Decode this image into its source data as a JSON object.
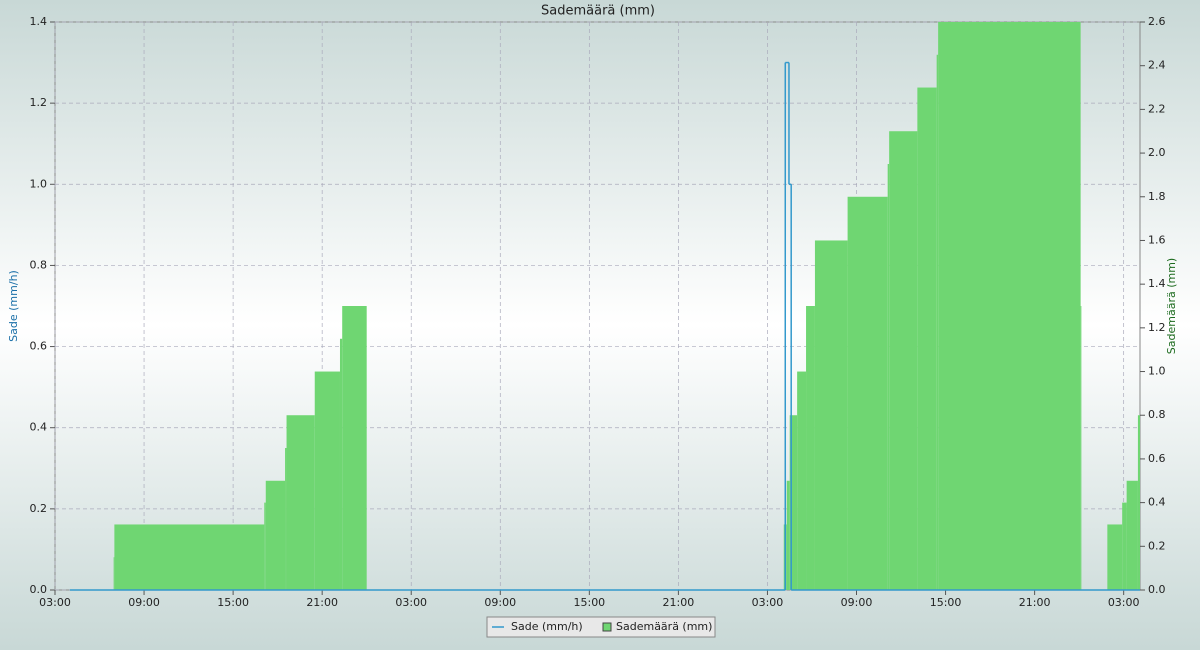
{
  "chart_data": {
    "type": "step",
    "title": "Sademäärä (mm)",
    "ylabel": "Sade (mm/h)",
    "y2label": "Sademäärä (mm)",
    "xlim": [
      0,
      73.1
    ],
    "xticks": [
      {
        "value": 0,
        "label": "03:00"
      },
      {
        "value": 6,
        "label": "09:00"
      },
      {
        "value": 12,
        "label": "15:00"
      },
      {
        "value": 18,
        "label": "21:00"
      },
      {
        "value": 24,
        "label": "03:00"
      },
      {
        "value": 30,
        "label": "09:00"
      },
      {
        "value": 36,
        "label": "15:00"
      },
      {
        "value": 42,
        "label": "21:00"
      },
      {
        "value": 48,
        "label": "03:00"
      },
      {
        "value": 54,
        "label": "09:00"
      },
      {
        "value": 60,
        "label": "15:00"
      },
      {
        "value": 66,
        "label": "21:00"
      },
      {
        "value": 72,
        "label": "03:00"
      }
    ],
    "ylim": [
      0,
      1.4
    ],
    "yticks": [
      {
        "value": 0,
        "label": "0.0"
      },
      {
        "value": 0.2,
        "label": "0.2"
      },
      {
        "value": 0.4,
        "label": "0.4"
      },
      {
        "value": 0.6,
        "label": "0.6"
      },
      {
        "value": 0.8,
        "label": "0.8"
      },
      {
        "value": 1,
        "label": "1.0"
      },
      {
        "value": 1.2,
        "label": "1.2"
      },
      {
        "value": 1.4,
        "label": "1.4"
      }
    ],
    "y2lim": [
      0,
      2.6
    ],
    "y2ticks": [
      {
        "value": 0,
        "label": "0.0"
      },
      {
        "value": 0.2,
        "label": "0.2"
      },
      {
        "value": 0.4,
        "label": "0.4"
      },
      {
        "value": 0.6,
        "label": "0.6"
      },
      {
        "value": 0.8,
        "label": "0.8"
      },
      {
        "value": 1,
        "label": "1.0"
      },
      {
        "value": 1.2,
        "label": "1.2"
      },
      {
        "value": 1.4,
        "label": "1.4"
      },
      {
        "value": 1.6,
        "label": "1.6"
      },
      {
        "value": 1.8,
        "label": "1.8"
      },
      {
        "value": 2,
        "label": "2.0"
      },
      {
        "value": 2.2,
        "label": "2.2"
      },
      {
        "value": 2.4,
        "label": "2.4"
      },
      {
        "value": 2.6,
        "label": "2.6"
      }
    ],
    "grid": true,
    "legend": "bottom",
    "series": [
      {
        "name": "Sademäärä (mm)",
        "color": "#6fd672",
        "axis": "y2",
        "x": [
          0,
          3.95,
          4.0,
          14.1,
          14.2,
          15.5,
          15.6,
          17.5,
          19.2,
          19.35,
          21.0,
          49.1,
          49.3,
          49.5,
          50.0,
          50.6,
          51.2,
          53.4,
          56.1,
          56.2,
          58.1,
          59.4,
          59.5,
          69.1,
          69.15,
          70.9,
          71.9,
          72.2,
          72.96
        ],
        "values": [
          0,
          0.15,
          0.3,
          0.4,
          0.5,
          0.65,
          0.8,
          1.0,
          1.15,
          1.3,
          0,
          0.3,
          0.5,
          0.8,
          1.0,
          1.3,
          1.6,
          1.8,
          1.95,
          2.1,
          2.3,
          2.45,
          2.6,
          1.3,
          0,
          0.3,
          0.4,
          0.5,
          0.8
        ]
      },
      {
        "name": "Sade (mm/h)",
        "color": "#3399cc",
        "x": [
          1.0,
          49.2,
          49.45,
          49.6,
          73.0
        ],
        "values": [
          0,
          1.3,
          1.0,
          0,
          0
        ]
      }
    ]
  }
}
